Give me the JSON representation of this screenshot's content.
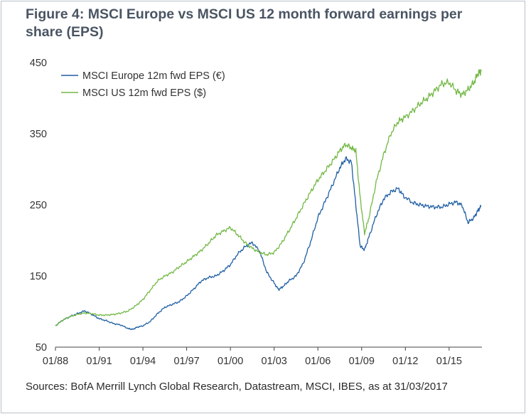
{
  "title": "Figure 4: MSCI Europe vs MSCI US 12 month forward earnings per share (EPS)",
  "source": "Sources: BofA Merrill Lynch Global Research, Datastream, MSCI, IBES, as at 31/03/2017",
  "chart_data": {
    "type": "line",
    "title": "Figure 4: MSCI Europe vs MSCI US 12 month forward earnings per share (EPS)",
    "xlabel": "",
    "ylabel": "",
    "ylim": [
      50,
      450
    ],
    "xlim": [
      1988.0,
      2017.25
    ],
    "yticks": [
      450,
      350,
      250,
      150,
      50
    ],
    "xtick_labels": [
      "01/88",
      "01/91",
      "01/94",
      "01/97",
      "01/00",
      "01/03",
      "01/06",
      "01/09",
      "01/12",
      "01/15"
    ],
    "xtick_values": [
      1988,
      1991,
      1994,
      1997,
      2000,
      2003,
      2006,
      2009,
      2012,
      2015
    ],
    "grid": false,
    "legend_position": "top-left",
    "series": [
      {
        "name": "MSCI Europe 12m fwd EPS (€)",
        "color": "#1f5fa3",
        "x": [
          1988.0,
          1988.5,
          1989.0,
          1989.5,
          1990.0,
          1990.5,
          1991.0,
          1991.5,
          1992.0,
          1992.5,
          1993.0,
          1993.3,
          1993.6,
          1994.0,
          1994.5,
          1995.0,
          1995.5,
          1996.0,
          1996.5,
          1997.0,
          1997.5,
          1998.0,
          1998.5,
          1999.0,
          1999.5,
          2000.0,
          2000.5,
          2001.0,
          2001.5,
          2002.0,
          2002.5,
          2003.0,
          2003.3,
          2003.6,
          2004.0,
          2004.5,
          2005.0,
          2005.5,
          2006.0,
          2006.5,
          2007.0,
          2007.5,
          2007.9,
          2008.3,
          2008.6,
          2008.9,
          2009.2,
          2009.5,
          2010.0,
          2010.5,
          2011.0,
          2011.5,
          2011.9,
          2012.5,
          2013.0,
          2013.5,
          2014.0,
          2014.5,
          2015.0,
          2015.5,
          2015.9,
          2016.3,
          2016.7,
          2017.0,
          2017.2
        ],
        "y": [
          80,
          88,
          93,
          97,
          101,
          96,
          90,
          87,
          83,
          81,
          76,
          75,
          78,
          80,
          86,
          97,
          106,
          110,
          114,
          122,
          132,
          143,
          148,
          150,
          157,
          166,
          181,
          191,
          197,
          185,
          155,
          140,
          131,
          135,
          143,
          150,
          168,
          198,
          232,
          255,
          278,
          302,
          315,
          310,
          250,
          192,
          187,
          205,
          235,
          258,
          268,
          273,
          262,
          253,
          250,
          248,
          247,
          247,
          251,
          254,
          249,
          225,
          232,
          243,
          248
        ]
      },
      {
        "name": "MSCI US 12m fwd EPS ($)",
        "color": "#72b844",
        "x": [
          1988.0,
          1988.5,
          1989.0,
          1989.5,
          1990.0,
          1990.5,
          1991.0,
          1991.5,
          1992.0,
          1992.5,
          1993.0,
          1993.5,
          1994.0,
          1994.5,
          1995.0,
          1995.5,
          1996.0,
          1996.5,
          1997.0,
          1997.5,
          1998.0,
          1998.5,
          1999.0,
          1999.5,
          2000.0,
          2000.5,
          2001.0,
          2001.5,
          2002.0,
          2002.5,
          2003.0,
          2003.5,
          2004.0,
          2004.5,
          2005.0,
          2005.5,
          2006.0,
          2006.5,
          2007.0,
          2007.5,
          2007.9,
          2008.3,
          2008.6,
          2008.9,
          2009.2,
          2009.5,
          2010.0,
          2010.5,
          2011.0,
          2011.5,
          2011.9,
          2012.5,
          2013.0,
          2013.5,
          2014.0,
          2014.5,
          2015.0,
          2015.5,
          2015.9,
          2016.3,
          2016.7,
          2017.0,
          2017.2
        ],
        "y": [
          80,
          88,
          93,
          96,
          98,
          97,
          95,
          95,
          96,
          98,
          101,
          108,
          117,
          130,
          143,
          150,
          155,
          163,
          170,
          178,
          186,
          196,
          207,
          213,
          218,
          208,
          197,
          189,
          183,
          180,
          183,
          196,
          213,
          231,
          250,
          268,
          285,
          298,
          311,
          326,
          335,
          330,
          326,
          260,
          210,
          232,
          282,
          320,
          350,
          367,
          372,
          382,
          392,
          400,
          410,
          420,
          422,
          410,
          405,
          412,
          422,
          436,
          438
        ]
      }
    ]
  }
}
